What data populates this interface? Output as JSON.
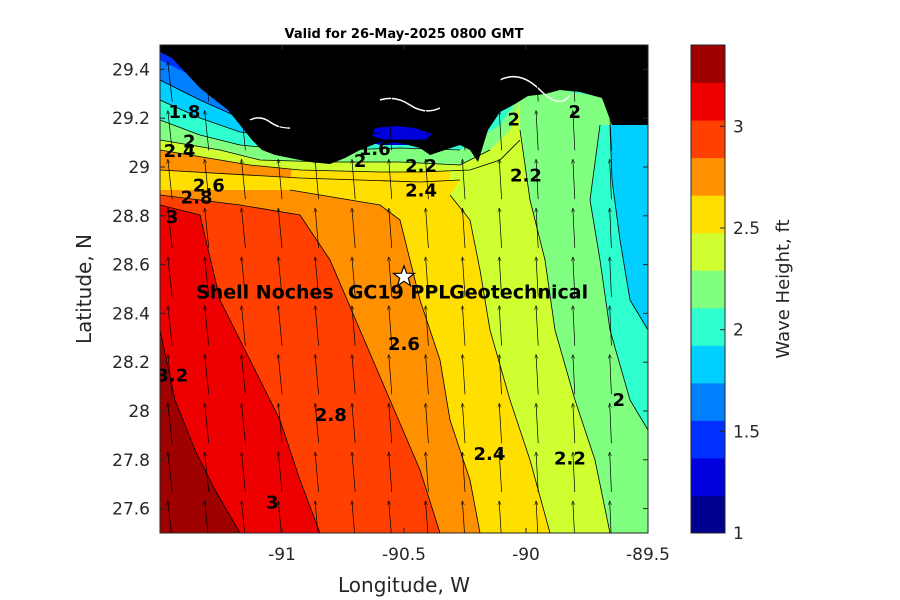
{
  "title": "Valid for 26-May-2025 0800 GMT",
  "colors": {
    "land": "#000000",
    "levels": [
      "#00008f",
      "#0000df",
      "#0030ff",
      "#0080ff",
      "#00cfff",
      "#2fffcf",
      "#80ff80",
      "#cfff30",
      "#ffdf00",
      "#ff9000",
      "#ff4000",
      "#ef0000",
      "#9f0000"
    ]
  },
  "chart_data": {
    "type": "contour-map",
    "variable": "Wave Height",
    "units": "ft",
    "xlabel": "Longitude, W",
    "ylabel": "Latitude, N",
    "xlim": [
      -91.5,
      -89.5
    ],
    "ylim": [
      27.5,
      29.5
    ],
    "xticks": [
      -91,
      -90.5,
      -90,
      -89.5
    ],
    "xtick_labels": [
      "-91",
      "-90.5",
      "-90",
      "-89.5"
    ],
    "yticks": [
      27.6,
      27.8,
      28,
      28.2,
      28.4,
      28.6,
      28.8,
      29,
      29.2,
      29.4
    ],
    "ytick_labels": [
      "27.6",
      "27.8",
      "28",
      "28.2",
      "28.4",
      "28.6",
      "28.8",
      "29",
      "29.2",
      "29.4"
    ],
    "colorbar": {
      "label": "Wave Height, ft",
      "range": [
        1,
        3.4
      ],
      "ticks": [
        1,
        1.5,
        2,
        2.5,
        3
      ],
      "tick_labels": [
        "1",
        "1.5",
        "2",
        "2.5",
        "3"
      ]
    },
    "contour_labels": [
      {
        "text": "1.8",
        "lon": -91.4,
        "lat": 29.2
      },
      {
        "text": "2",
        "lon": -91.38,
        "lat": 29.08
      },
      {
        "text": "2.4",
        "lon": -91.42,
        "lat": 29.04
      },
      {
        "text": "2.6",
        "lon": -91.3,
        "lat": 28.9
      },
      {
        "text": "2.8",
        "lon": -91.35,
        "lat": 28.85
      },
      {
        "text": "3",
        "lon": -91.45,
        "lat": 28.77
      },
      {
        "text": "1.6",
        "lon": -90.62,
        "lat": 29.05
      },
      {
        "text": "2",
        "lon": -90.68,
        "lat": 29.0
      },
      {
        "text": "2.2",
        "lon": -90.43,
        "lat": 28.98
      },
      {
        "text": "2.4",
        "lon": -90.43,
        "lat": 28.88
      },
      {
        "text": "2",
        "lon": -90.05,
        "lat": 29.17
      },
      {
        "text": "2",
        "lon": -89.8,
        "lat": 29.2
      },
      {
        "text": "2.2",
        "lon": -90.0,
        "lat": 28.94
      },
      {
        "text": "2.6",
        "lon": -90.5,
        "lat": 28.25
      },
      {
        "text": "3.2",
        "lon": -91.45,
        "lat": 28.12
      },
      {
        "text": "2.8",
        "lon": -90.8,
        "lat": 27.96
      },
      {
        "text": "3",
        "lon": -91.04,
        "lat": 27.6
      },
      {
        "text": "2.4",
        "lon": -90.15,
        "lat": 27.8
      },
      {
        "text": "2.2",
        "lon": -89.82,
        "lat": 27.78
      },
      {
        "text": "2",
        "lon": -89.62,
        "lat": 28.02
      }
    ],
    "sites": [
      {
        "name": "Shell Noches",
        "lon": -91.07,
        "lat": 28.49
      },
      {
        "name": "GC19 PPL",
        "lon": -90.52,
        "lat": 28.49
      },
      {
        "name": "Geotechnical",
        "lon": -90.03,
        "lat": 28.49
      }
    ],
    "marker": {
      "type": "star",
      "lon": -90.5,
      "lat": 28.55
    }
  }
}
